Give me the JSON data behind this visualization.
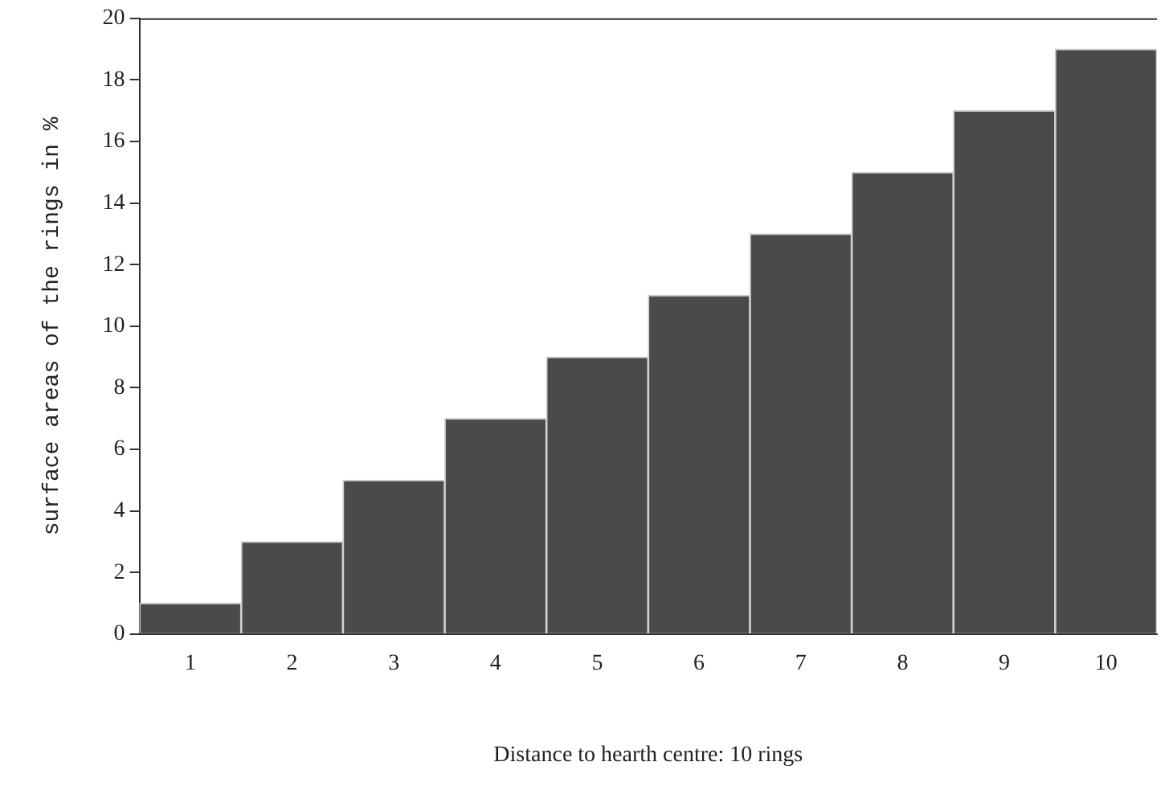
{
  "chart_data": {
    "type": "bar",
    "xlabel": "Distance to hearth centre: 10 rings",
    "ylabel": "surface areas of the rings in %",
    "categories": [
      "1",
      "2",
      "3",
      "4",
      "5",
      "6",
      "7",
      "8",
      "9",
      "10"
    ],
    "values": [
      1,
      3,
      5,
      7,
      9,
      11,
      13,
      15,
      17,
      19
    ],
    "color": "#4a4a4a",
    "ylim": [
      0,
      20
    ],
    "yticks": [
      0,
      2,
      4,
      6,
      8,
      10,
      12,
      14,
      16,
      18,
      20
    ],
    "grid": false,
    "legend": false
  }
}
